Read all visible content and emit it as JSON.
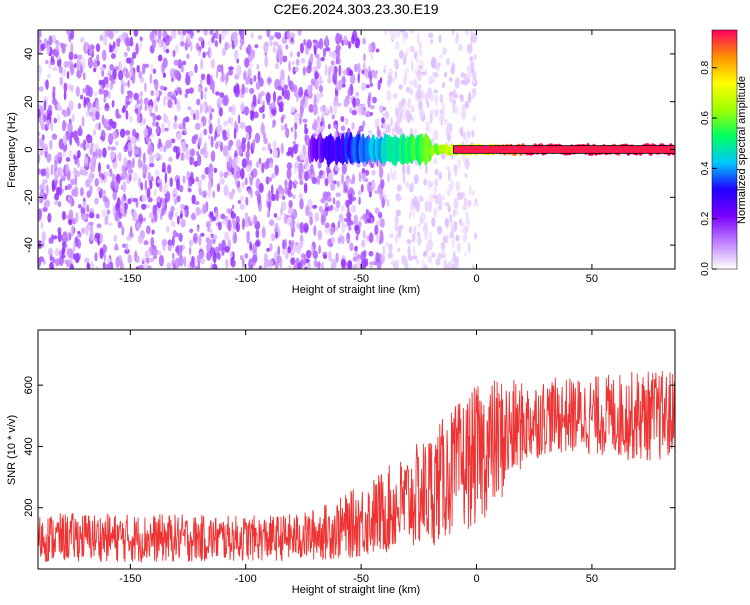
{
  "title": "C2E6.2024.303.23.30.E19",
  "chart_data": [
    {
      "type": "heatmap",
      "xlabel": "Height of straight line (km)",
      "ylabel": "Frequency (Hz)",
      "xlim": [
        -190,
        86
      ],
      "ylim": [
        -50,
        50
      ],
      "xticks": [
        -150,
        -100,
        -50,
        0,
        50
      ],
      "yticks": [
        -40,
        -20,
        0,
        20,
        40
      ],
      "colorbar": {
        "label": "Normalized spectral amplitude",
        "range": [
          0,
          0.95
        ],
        "ticks": [
          0.0,
          0.2,
          0.4,
          0.6,
          0.8
        ],
        "colors": [
          "#ffffff",
          "#c080ff",
          "#7a00ff",
          "#2000ff",
          "#00c8ff",
          "#00ff60",
          "#a0ff00",
          "#ffff00",
          "#ff9000",
          "#ff0060"
        ]
      },
      "regions": [
        {
          "x": [
            -190,
            -40
          ],
          "freq": [
            -50,
            50
          ],
          "amplitude": 0.1,
          "description_value": "broadband noise"
        },
        {
          "x": [
            -40,
            0
          ],
          "freq": [
            -50,
            50
          ],
          "amplitude": 0.05
        },
        {
          "x": [
            -72,
            86
          ],
          "freq": [
            -2,
            2
          ],
          "amplitude_start": 0.2,
          "amplitude_end": 0.95
        }
      ]
    },
    {
      "type": "line",
      "xlabel": "Height of straight line (km)",
      "ylabel": "SNR (10 * v/v)",
      "xlim": [
        -190,
        86
      ],
      "ylim": [
        0,
        780
      ],
      "xticks": [
        -150,
        -100,
        -50,
        0,
        50
      ],
      "yticks": [
        200,
        400,
        600
      ],
      "series": [
        {
          "color": "#ee3333",
          "x": [
            -190,
            -170,
            -150,
            -130,
            -110,
            -90,
            -75,
            -60,
            -45,
            -30,
            -20,
            -10,
            0,
            10,
            20,
            30,
            40,
            50,
            60,
            70,
            86
          ],
          "y": [
            100,
            105,
            100,
            100,
            100,
            100,
            105,
            130,
            170,
            220,
            260,
            320,
            370,
            420,
            470,
            500,
            500,
            500,
            500,
            500,
            500
          ],
          "spread": [
            160,
            160,
            160,
            160,
            150,
            150,
            160,
            200,
            260,
            320,
            380,
            420,
            460,
            420,
            280,
            250,
            250,
            260,
            280,
            300,
            300
          ]
        }
      ]
    }
  ]
}
